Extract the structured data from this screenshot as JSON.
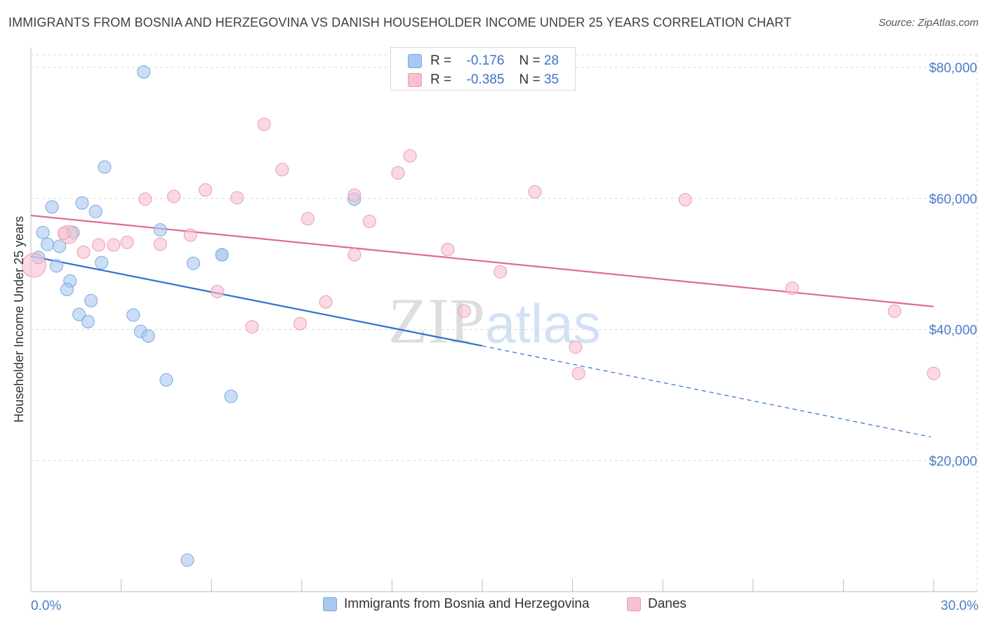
{
  "title": "IMMIGRANTS FROM BOSNIA AND HERZEGOVINA VS DANISH HOUSEHOLDER INCOME UNDER 25 YEARS CORRELATION CHART",
  "source": "Source: ZipAtlas.com",
  "watermark": {
    "zip": "ZIP",
    "atlas": "atlas"
  },
  "legend_top": [
    {
      "label_r": "R =",
      "r": "-0.176",
      "label_n": "N =",
      "n": "28"
    },
    {
      "label_r": "R =",
      "r": "-0.385",
      "label_n": "N =",
      "n": "35"
    }
  ],
  "bottom_legend": [
    "Immigrants from Bosnia and Herzegovina",
    "Danes"
  ],
  "chart_data": {
    "type": "scatter",
    "title": "IMMIGRANTS FROM BOSNIA AND HERZEGOVINA VS DANISH HOUSEHOLDER INCOME UNDER 25 YEARS CORRELATION CHART",
    "xlabel": "",
    "ylabel": "Householder Income Under 25 years",
    "xlim": [
      0,
      30
    ],
    "ylim": [
      0,
      83000
    ],
    "x_tick_labels": [
      "0.0%",
      "30.0%"
    ],
    "y_ticks": [
      20000,
      40000,
      60000,
      80000
    ],
    "y_tick_labels": [
      "$20,000",
      "$40,000",
      "$60,000",
      "$80,000"
    ],
    "grid": true,
    "legend": "top-center",
    "colors": {
      "blue_fill": "#a8c8f0",
      "blue_stroke": "#7aa6e0",
      "blue_line": "#2f6fd0",
      "pink_fill": "#f7c0cf",
      "pink_stroke": "#ec9bb3",
      "pink_line": "#e06890",
      "grid": "#d8d8d8",
      "axis_text": "#4a7cc9"
    },
    "series": [
      {
        "name": "Immigrants from Bosnia and Herzegovina",
        "R": -0.176,
        "N": 28,
        "points": [
          [
            3.75,
            79300
          ],
          [
            2.45,
            64800
          ],
          [
            0.7,
            58700
          ],
          [
            1.7,
            59300
          ],
          [
            2.15,
            58000
          ],
          [
            0.4,
            54800
          ],
          [
            1.4,
            54800
          ],
          [
            4.3,
            55200
          ],
          [
            0.55,
            53000
          ],
          [
            0.95,
            52700
          ],
          [
            0.25,
            51000
          ],
          [
            2.35,
            50200
          ],
          [
            0.85,
            49700
          ],
          [
            6.35,
            51400
          ],
          [
            6.35,
            51400
          ],
          [
            5.4,
            50100
          ],
          [
            1.3,
            47400
          ],
          [
            1.2,
            46100
          ],
          [
            2.0,
            44400
          ],
          [
            1.6,
            42300
          ],
          [
            1.9,
            41200
          ],
          [
            3.4,
            42200
          ],
          [
            3.65,
            39700
          ],
          [
            3.9,
            39000
          ],
          [
            10.75,
            59900
          ],
          [
            4.5,
            32300
          ],
          [
            6.65,
            29800
          ],
          [
            5.2,
            4800
          ]
        ],
        "trend": {
          "x0": 0.0,
          "y0": 51200,
          "x1": 15.0,
          "y1": 37500
        },
        "trend_dashed": {
          "x0": 15.0,
          "y0": 37500,
          "x1": 29.9,
          "y1": 23600
        }
      },
      {
        "name": "Danes",
        "R": -0.385,
        "N": 35,
        "points": [
          [
            0.1,
            49800
          ],
          [
            1.25,
            54500
          ],
          [
            1.1,
            54700
          ],
          [
            7.75,
            71300
          ],
          [
            8.35,
            64400
          ],
          [
            12.6,
            66500
          ],
          [
            12.2,
            63900
          ],
          [
            5.8,
            61300
          ],
          [
            3.8,
            59900
          ],
          [
            4.75,
            60300
          ],
          [
            6.85,
            60100
          ],
          [
            10.75,
            60500
          ],
          [
            16.75,
            61000
          ],
          [
            21.75,
            59800
          ],
          [
            9.2,
            56900
          ],
          [
            11.25,
            56500
          ],
          [
            5.3,
            54400
          ],
          [
            3.2,
            53300
          ],
          [
            4.3,
            53000
          ],
          [
            2.25,
            52900
          ],
          [
            2.75,
            52900
          ],
          [
            1.75,
            51800
          ],
          [
            13.85,
            52200
          ],
          [
            10.75,
            51400
          ],
          [
            15.6,
            48800
          ],
          [
            6.2,
            45800
          ],
          [
            9.8,
            44200
          ],
          [
            25.3,
            46300
          ],
          [
            14.4,
            42800
          ],
          [
            28.7,
            42800
          ],
          [
            8.95,
            40900
          ],
          [
            7.35,
            40400
          ],
          [
            18.1,
            37300
          ],
          [
            18.2,
            33300
          ],
          [
            30.0,
            33300
          ]
        ],
        "trend": {
          "x0": 0.0,
          "y0": 57400,
          "x1": 30.0,
          "y1": 43500
        }
      }
    ]
  }
}
